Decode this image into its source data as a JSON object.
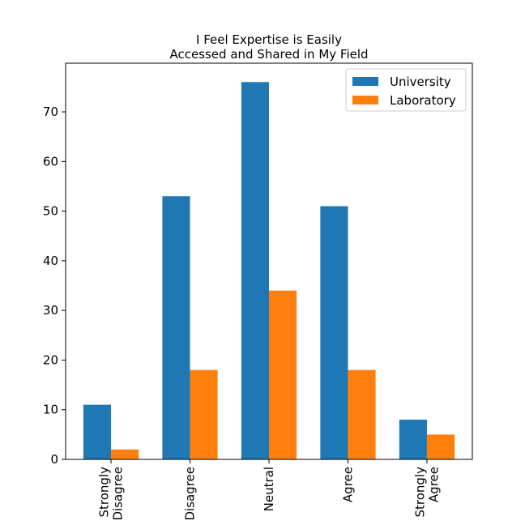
{
  "chart_data": {
    "type": "bar",
    "title": [
      "I Feel Expertise is Easily",
      "Accessed and Shared in My Field"
    ],
    "categories": [
      [
        "Strongly",
        "Disagree"
      ],
      [
        "Disagree"
      ],
      [
        "Neutral"
      ],
      [
        "Agree"
      ],
      [
        "Strongly",
        "Agree"
      ]
    ],
    "series": [
      {
        "name": "University",
        "color": "#1f77b4",
        "values": [
          11,
          53,
          76,
          51,
          8
        ]
      },
      {
        "name": "Laboratory",
        "color": "#ff7f0e",
        "values": [
          2,
          18,
          34,
          18,
          5
        ]
      }
    ],
    "xlabel": "",
    "ylabel": "",
    "ylim": [
      0,
      79.8
    ],
    "yticks": [
      0,
      10,
      20,
      30,
      40,
      50,
      60,
      70
    ],
    "legend_position": "top-right",
    "grid": false
  }
}
